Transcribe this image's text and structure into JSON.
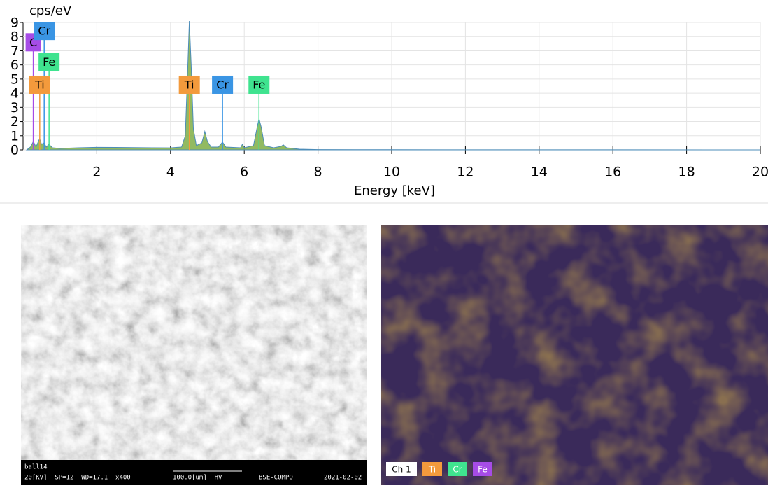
{
  "chart_data": {
    "type": "area",
    "ylabel": "cps/eV",
    "xlabel": "Energy [keV]",
    "xlim": [
      0,
      20
    ],
    "ylim": [
      0,
      9
    ],
    "xticks": [
      2,
      4,
      6,
      8,
      10,
      12,
      14,
      16,
      18,
      20
    ],
    "yticks": [
      0,
      1,
      2,
      3,
      4,
      5,
      6,
      7,
      8,
      9
    ],
    "grid": true,
    "color": "#7fae45",
    "x": [
      0.1,
      0.2,
      0.28,
      0.35,
      0.45,
      0.5,
      0.57,
      0.63,
      0.7,
      0.8,
      1.0,
      1.5,
      2.0,
      2.5,
      3.0,
      3.5,
      4.0,
      4.3,
      4.4,
      4.47,
      4.51,
      4.56,
      4.62,
      4.7,
      4.85,
      4.93,
      5.0,
      5.1,
      5.3,
      5.41,
      5.5,
      5.9,
      5.95,
      6.0,
      6.25,
      6.35,
      6.4,
      6.46,
      6.55,
      6.8,
      7.0,
      7.06,
      7.15,
      7.5,
      8,
      10,
      20
    ],
    "values": [
      0.0,
      0.2,
      0.6,
      0.2,
      0.8,
      0.4,
      0.5,
      0.2,
      0.4,
      0.15,
      0.1,
      0.15,
      0.18,
      0.17,
      0.16,
      0.15,
      0.14,
      0.2,
      1.0,
      6.0,
      9.1,
      6.0,
      1.5,
      0.3,
      0.5,
      1.3,
      0.6,
      0.2,
      0.2,
      0.55,
      0.2,
      0.15,
      0.4,
      0.15,
      0.3,
      1.6,
      2.2,
      1.6,
      0.3,
      0.15,
      0.25,
      0.35,
      0.15,
      0.05,
      0.02,
      0.01,
      0.0
    ],
    "markers": [
      {
        "label": "C",
        "x": 0.277,
        "y": 7.6,
        "color": "#a64ce6"
      },
      {
        "label": "Cr",
        "x": 0.573,
        "y": 8.4,
        "color": "#3a95e4"
      },
      {
        "label": "Fe",
        "x": 0.705,
        "y": 6.2,
        "color": "#3fe38f"
      },
      {
        "label": "Ti",
        "x": 0.452,
        "y": 4.6,
        "color": "#f39a3c"
      },
      {
        "label": "Ti",
        "x": 4.51,
        "y": 4.6,
        "color": "#f39a3c"
      },
      {
        "label": "Cr",
        "x": 5.41,
        "y": 4.6,
        "color": "#3a95e4"
      },
      {
        "label": "Fe",
        "x": 6.4,
        "y": 4.6,
        "color": "#3fe38f"
      }
    ]
  },
  "images": {
    "sem": {
      "name": "ball14",
      "settings": "20[KV]  SP=12  WD=17.1  x400",
      "scale": "100.0[um]  HV",
      "mode": "BSE-COMPO",
      "date": "2021-02-02"
    },
    "map": {
      "legend": [
        {
          "label": "Ch 1",
          "color": "#ffffff"
        },
        {
          "label": "Ti",
          "color": "#f39a3c"
        },
        {
          "label": "Cr",
          "color": "#3fe38f"
        },
        {
          "label": "Fe",
          "color": "#a64ce6"
        }
      ]
    }
  }
}
